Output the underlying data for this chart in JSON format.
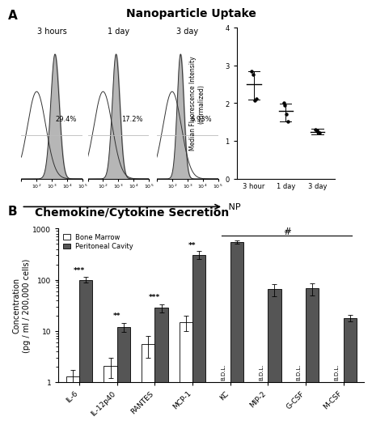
{
  "title_A": "Nanoparticle Uptake",
  "title_B": "Chemokine/Cytokine Secretion",
  "panel_A_label": "A",
  "panel_B_label": "B",
  "flow_panels": [
    {
      "label": "3 hours",
      "pct": "29.4%"
    },
    {
      "label": "1 day",
      "pct": "17.2%"
    },
    {
      "label": "3 day",
      "pct": "6.93%"
    }
  ],
  "np_arrow_label": "NP",
  "scatter_groups": [
    "3 hour",
    "1 day",
    "3 day"
  ],
  "scatter_means": [
    2.5,
    1.8,
    1.25
  ],
  "scatter_sem_upper": [
    0.35,
    0.18,
    0.07
  ],
  "scatter_sem_lower": [
    0.4,
    0.28,
    0.07
  ],
  "scatter_points_3h": [
    2.85,
    2.75,
    2.08,
    2.12
  ],
  "scatter_points_1d": [
    2.0,
    1.95,
    1.72,
    1.52
  ],
  "scatter_points_3d": [
    1.3,
    1.28,
    1.25,
    1.22
  ],
  "scatter_ylabel": "Median Fluorescence Intensity\n(normalized)",
  "scatter_ylim": [
    0,
    4
  ],
  "scatter_yticks": [
    0,
    1,
    2,
    3,
    4
  ],
  "bar_categories": [
    "IL-6",
    "IL-12p40",
    "RANTES",
    "MCP-1",
    "KC",
    "MIP-2",
    "G-CSF",
    "M-CSF"
  ],
  "bar_bm": [
    1.3,
    2.1,
    5.5,
    15.0,
    null,
    null,
    null,
    null
  ],
  "bar_pc": [
    100.0,
    12.0,
    28.0,
    310.0,
    550.0,
    65.0,
    68.0,
    18.0
  ],
  "bar_bm_err": [
    0.4,
    0.9,
    2.5,
    5.0,
    null,
    null,
    null,
    null
  ],
  "bar_pc_err": [
    12.0,
    2.5,
    5.0,
    55.0,
    45.0,
    18.0,
    18.0,
    2.5
  ],
  "bar_color_bm": "#ffffff",
  "bar_color_pc": "#555555",
  "bar_edge_color": "#000000",
  "bar_ylabel": "Concentration\n(pg / ml / 200,000 cells)",
  "bar_significance": {
    "IL-6": "***",
    "IL-12p40": "**",
    "RANTES": "***",
    "MCP-1": "**"
  },
  "bar_bdl_bm": [
    "KC",
    "MIP-2",
    "G-CSF",
    "M-CSF"
  ],
  "bar_hash_group": [
    "KC",
    "MIP-2",
    "G-CSF",
    "M-CSF"
  ],
  "bar_hash_label": "#",
  "legend_bm": "Bone Marrow",
  "legend_pc": "Peritoneal Cavity",
  "bg_color": "#ffffff",
  "text_color": "#000000",
  "font_size_title": 10,
  "font_size_label": 7,
  "font_size_tick": 6.5,
  "font_size_annot": 6.5,
  "hist_fill_color": "#aaaaaa",
  "hist_line_color": "#333333"
}
